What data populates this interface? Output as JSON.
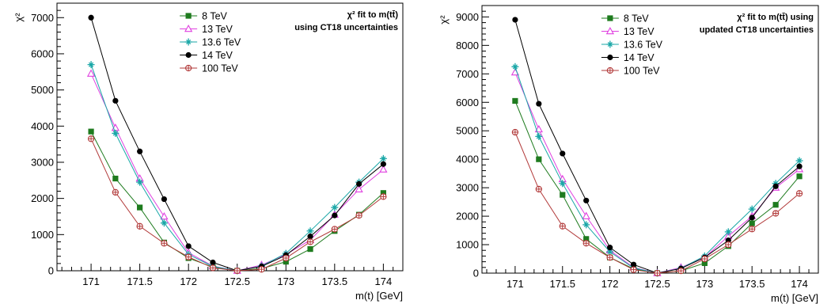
{
  "chart_data": [
    {
      "type": "line",
      "annotation": [
        "χ² fit to m(tt̄)",
        "using CT18 uncertainties"
      ],
      "xlabel": "m(t) [GeV]",
      "ylabel": "χ²",
      "xlim": [
        170.65,
        174.2
      ],
      "ylim": [
        0,
        7400
      ],
      "xticks": [
        171,
        171.5,
        172,
        172.5,
        173,
        173.5,
        174
      ],
      "xtick_labels": [
        "171",
        "171.5",
        "172",
        "172.5",
        "173",
        "173.5",
        "174"
      ],
      "yticks": [
        0,
        1000,
        2000,
        3000,
        4000,
        5000,
        6000,
        7000
      ],
      "ytick_labels": [
        "0",
        "1000",
        "2000",
        "3000",
        "4000",
        "5000",
        "6000",
        "7000"
      ],
      "grid": false,
      "legend": "top-center",
      "x": [
        171,
        171.25,
        171.5,
        171.75,
        172,
        172.25,
        172.5,
        172.75,
        173,
        173.25,
        173.5,
        173.75,
        174
      ],
      "series": [
        {
          "name": "8 TeV",
          "color": "#1e7b1e",
          "marker": "square",
          "values": [
            3850,
            2550,
            1750,
            780,
            350,
            100,
            0,
            60,
            250,
            600,
            1100,
            1550,
            2150
          ]
        },
        {
          "name": "13 TeV",
          "color": "#e040e0",
          "marker": "triangle-open",
          "values": [
            5450,
            3950,
            2550,
            1500,
            500,
            130,
            0,
            160,
            450,
            850,
            1550,
            2250,
            2800
          ]
        },
        {
          "name": "13.6 TeV",
          "color": "#1aa7a7",
          "marker": "star",
          "values": [
            5700,
            3800,
            2450,
            1320,
            450,
            120,
            0,
            130,
            480,
            1100,
            1750,
            2450,
            3100
          ]
        },
        {
          "name": "14 TeV",
          "color": "#000000",
          "marker": "circle",
          "values": [
            7000,
            4700,
            3300,
            1980,
            680,
            230,
            0,
            120,
            430,
            950,
            1530,
            2400,
            2950
          ]
        },
        {
          "name": "100 TeV",
          "color": "#b23a3a",
          "marker": "diamond-open",
          "values": [
            3650,
            2170,
            1230,
            760,
            380,
            80,
            0,
            40,
            350,
            800,
            1150,
            1530,
            2050
          ]
        }
      ]
    },
    {
      "type": "line",
      "annotation": [
        "χ² fit to m(tt̄) using",
        "updated CT18 uncertainties"
      ],
      "xlabel": "m(t) [GeV]",
      "ylabel": "χ²",
      "xlim": [
        170.65,
        174.2
      ],
      "ylim": [
        0,
        9400
      ],
      "xticks": [
        171,
        171.5,
        172,
        172.5,
        173,
        173.5,
        174
      ],
      "xtick_labels": [
        "171",
        "171.5",
        "172",
        "172.5",
        "173",
        "173.5",
        "174"
      ],
      "yticks": [
        0,
        1000,
        2000,
        3000,
        4000,
        5000,
        6000,
        7000,
        8000,
        9000
      ],
      "ytick_labels": [
        "0",
        "1000",
        "2000",
        "3000",
        "4000",
        "5000",
        "6000",
        "7000",
        "8000",
        "9000"
      ],
      "grid": false,
      "legend": "top-center",
      "x": [
        171,
        171.25,
        171.5,
        171.75,
        172,
        172.25,
        172.5,
        172.75,
        173,
        173.25,
        173.5,
        173.75,
        174
      ],
      "series": [
        {
          "name": "8 TeV",
          "color": "#1e7b1e",
          "marker": "square",
          "values": [
            6050,
            4000,
            2750,
            1200,
            550,
            150,
            0,
            80,
            350,
            950,
            1750,
            2400,
            3400
          ]
        },
        {
          "name": "13 TeV",
          "color": "#e040e0",
          "marker": "triangle-open",
          "values": [
            7050,
            5050,
            3300,
            2000,
            800,
            200,
            0,
            200,
            550,
            1300,
            2000,
            3000,
            3650
          ]
        },
        {
          "name": "13.6 TeV",
          "color": "#1aa7a7",
          "marker": "star",
          "values": [
            7250,
            4800,
            3150,
            1700,
            750,
            180,
            0,
            170,
            600,
            1450,
            2250,
            3150,
            3950
          ]
        },
        {
          "name": "14 TeV",
          "color": "#000000",
          "marker": "circle",
          "values": [
            8900,
            5950,
            4200,
            2550,
            900,
            300,
            0,
            160,
            550,
            1150,
            1950,
            3050,
            3750
          ]
        },
        {
          "name": "100 TeV",
          "color": "#b23a3a",
          "marker": "diamond-open",
          "values": [
            4950,
            2950,
            1650,
            1050,
            550,
            120,
            0,
            80,
            500,
            1000,
            1550,
            2100,
            2800
          ]
        }
      ]
    }
  ]
}
